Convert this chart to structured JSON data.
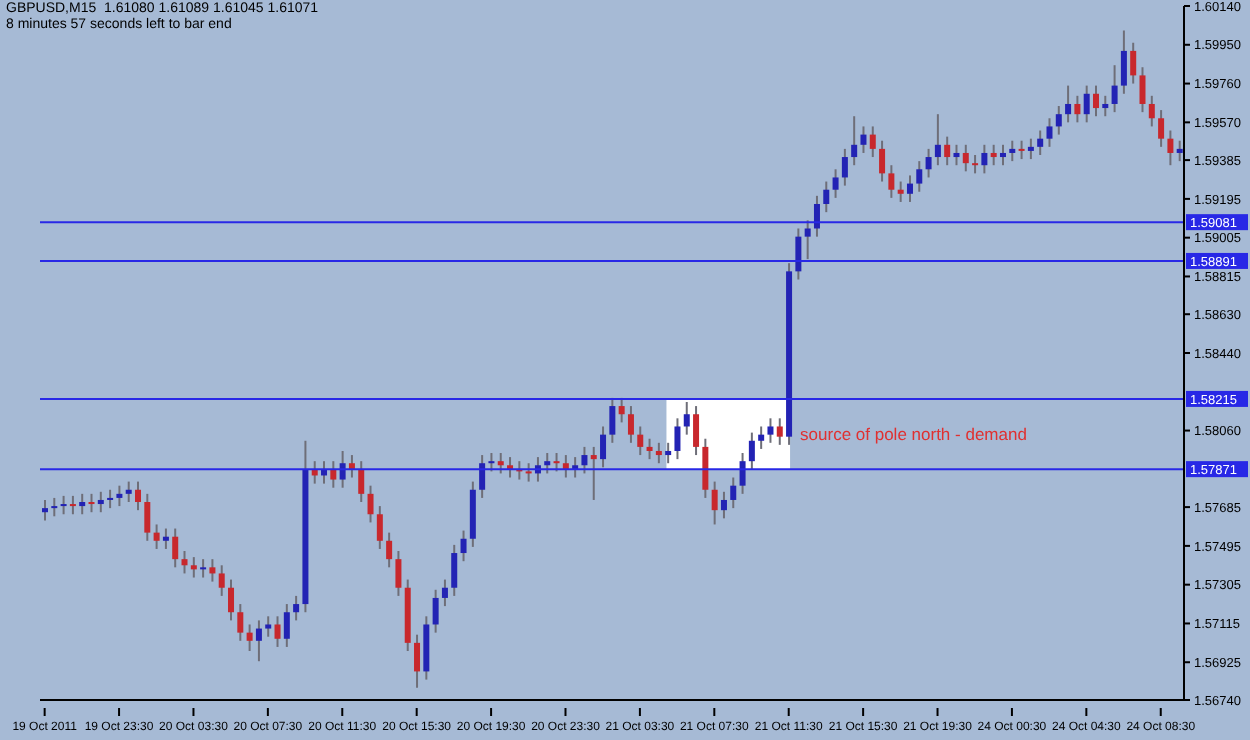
{
  "chart_data": {
    "type": "candlestick",
    "title": "GBPUSD,M15  1.61080 1.61089 1.61045 1.61071",
    "subtitle": "8 minutes 57 seconds left to bar end",
    "annotations": [
      "source of pole north - demand"
    ],
    "categories": [
      "19 Oct 2011",
      null,
      null,
      null,
      null,
      null,
      null,
      null,
      "19 Oct 23:30",
      null,
      null,
      null,
      null,
      null,
      null,
      null,
      "20 Oct 03:30",
      null,
      null,
      null,
      null,
      null,
      null,
      null,
      "20 Oct 07:30",
      null,
      null,
      null,
      null,
      null,
      null,
      null,
      "20 Oct 11:30",
      null,
      null,
      null,
      null,
      null,
      null,
      null,
      "20 Oct 15:30",
      null,
      null,
      null,
      null,
      null,
      null,
      null,
      "20 Oct 19:30",
      null,
      null,
      null,
      null,
      null,
      null,
      null,
      "20 Oct 23:30",
      null,
      null,
      null,
      null,
      null,
      null,
      null,
      "21 Oct 03:30",
      null,
      null,
      null,
      null,
      null,
      null,
      null,
      "21 Oct 07:30",
      null,
      null,
      null,
      null,
      null,
      null,
      null,
      "21 Oct 11:30",
      null,
      null,
      null,
      null,
      null,
      null,
      null,
      "21 Oct 15:30",
      null,
      null,
      null,
      null,
      null,
      null,
      null,
      "21 Oct 19:30",
      null,
      null,
      null,
      null,
      null,
      null,
      null,
      "24 Oct 00:30",
      null,
      null,
      null,
      null,
      null,
      null,
      null,
      "24 Oct 04:30",
      null,
      null,
      null,
      null,
      null,
      null,
      null,
      "24 Oct 08:30",
      null,
      null
    ],
    "ohlc": [
      [
        1.5766,
        1.5772,
        1.5762,
        1.5768
      ],
      [
        1.5768,
        1.5773,
        1.5764,
        1.5769
      ],
      [
        1.5769,
        1.5774,
        1.5765,
        1.577
      ],
      [
        1.577,
        1.5774,
        1.5765,
        1.5769
      ],
      [
        1.5769,
        1.5775,
        1.5765,
        1.5771
      ],
      [
        1.5771,
        1.5775,
        1.5766,
        1.577
      ],
      [
        1.577,
        1.5776,
        1.5766,
        1.5772
      ],
      [
        1.5772,
        1.5777,
        1.5768,
        1.5773
      ],
      [
        1.5773,
        1.5779,
        1.5769,
        1.5775
      ],
      [
        1.5775,
        1.5781,
        1.5771,
        1.5777
      ],
      [
        1.5777,
        1.5781,
        1.5767,
        1.5771
      ],
      [
        1.5771,
        1.5775,
        1.5752,
        1.5756
      ],
      [
        1.5756,
        1.576,
        1.5748,
        1.5752
      ],
      [
        1.5752,
        1.5758,
        1.5748,
        1.5754
      ],
      [
        1.5754,
        1.5758,
        1.5739,
        1.5743
      ],
      [
        1.5743,
        1.5747,
        1.5736,
        1.574
      ],
      [
        1.574,
        1.5744,
        1.5734,
        1.5738
      ],
      [
        1.5738,
        1.5743,
        1.5734,
        1.5739
      ],
      [
        1.5739,
        1.5743,
        1.5732,
        1.5736
      ],
      [
        1.5736,
        1.574,
        1.5725,
        1.5729
      ],
      [
        1.5729,
        1.5733,
        1.5713,
        1.5717
      ],
      [
        1.5717,
        1.5721,
        1.5703,
        1.5707
      ],
      [
        1.5707,
        1.5711,
        1.5698,
        1.5703
      ],
      [
        1.5703,
        1.5713,
        1.5693,
        1.5709
      ],
      [
        1.5709,
        1.5715,
        1.5705,
        1.5711
      ],
      [
        1.5711,
        1.5715,
        1.57,
        1.5704
      ],
      [
        1.5704,
        1.5721,
        1.57,
        1.5717
      ],
      [
        1.5717,
        1.5725,
        1.5713,
        1.5721
      ],
      [
        1.5721,
        1.5801,
        1.5717,
        1.5787
      ],
      [
        1.5787,
        1.5791,
        1.578,
        1.5784
      ],
      [
        1.5784,
        1.5791,
        1.578,
        1.5787
      ],
      [
        1.5787,
        1.5791,
        1.5778,
        1.5782
      ],
      [
        1.5782,
        1.5796,
        1.5778,
        1.579
      ],
      [
        1.579,
        1.5794,
        1.5783,
        1.5787
      ],
      [
        1.5787,
        1.5791,
        1.5771,
        1.5775
      ],
      [
        1.5775,
        1.5779,
        1.5761,
        1.5765
      ],
      [
        1.5765,
        1.5769,
        1.5748,
        1.5752
      ],
      [
        1.5752,
        1.5756,
        1.5739,
        1.5743
      ],
      [
        1.5743,
        1.5747,
        1.5725,
        1.5729
      ],
      [
        1.5729,
        1.5733,
        1.5698,
        1.5702
      ],
      [
        1.5702,
        1.5706,
        1.568,
        1.5688
      ],
      [
        1.5688,
        1.5715,
        1.5684,
        1.5711
      ],
      [
        1.5711,
        1.5728,
        1.5707,
        1.5724
      ],
      [
        1.5724,
        1.5733,
        1.572,
        1.5729
      ],
      [
        1.5729,
        1.575,
        1.5725,
        1.5746
      ],
      [
        1.5746,
        1.5757,
        1.5742,
        1.5753
      ],
      [
        1.5753,
        1.5781,
        1.5749,
        1.5777
      ],
      [
        1.5777,
        1.5794,
        1.5773,
        1.579
      ],
      [
        1.579,
        1.5795,
        1.5786,
        1.5791
      ],
      [
        1.5791,
        1.5795,
        1.5785,
        1.5789
      ],
      [
        1.5789,
        1.5793,
        1.5783,
        1.5787
      ],
      [
        1.5787,
        1.5791,
        1.5782,
        1.5786
      ],
      [
        1.5786,
        1.579,
        1.5781,
        1.5785
      ],
      [
        1.5785,
        1.5793,
        1.5781,
        1.5789
      ],
      [
        1.5789,
        1.5795,
        1.5785,
        1.5791
      ],
      [
        1.5791,
        1.5795,
        1.5786,
        1.579
      ],
      [
        1.579,
        1.5794,
        1.5783,
        1.5787
      ],
      [
        1.5787,
        1.5793,
        1.5783,
        1.5789
      ],
      [
        1.5789,
        1.5798,
        1.5785,
        1.5794
      ],
      [
        1.5794,
        1.5798,
        1.5772,
        1.5792
      ],
      [
        1.5792,
        1.5808,
        1.5788,
        1.5804
      ],
      [
        1.5804,
        1.5822,
        1.58,
        1.5818
      ],
      [
        1.5818,
        1.5822,
        1.581,
        1.5814
      ],
      [
        1.5814,
        1.5818,
        1.58,
        1.5804
      ],
      [
        1.5804,
        1.5808,
        1.5794,
        1.5798
      ],
      [
        1.5798,
        1.5802,
        1.5792,
        1.5796
      ],
      [
        1.5796,
        1.58,
        1.579,
        1.5794
      ],
      [
        1.5794,
        1.58,
        1.579,
        1.5796
      ],
      [
        1.5796,
        1.5812,
        1.5792,
        1.5808
      ],
      [
        1.5808,
        1.582,
        1.5804,
        1.5814
      ],
      [
        1.5814,
        1.5818,
        1.5794,
        1.5798
      ],
      [
        1.5798,
        1.5802,
        1.5773,
        1.5777
      ],
      [
        1.5777,
        1.5781,
        1.576,
        1.5767
      ],
      [
        1.5767,
        1.5776,
        1.5763,
        1.5772
      ],
      [
        1.5772,
        1.5783,
        1.5768,
        1.5779
      ],
      [
        1.5779,
        1.5795,
        1.5775,
        1.5791
      ],
      [
        1.5791,
        1.5805,
        1.5787,
        1.5801
      ],
      [
        1.5801,
        1.5808,
        1.5797,
        1.5804
      ],
      [
        1.5804,
        1.5812,
        1.58,
        1.5808
      ],
      [
        1.5808,
        1.5812,
        1.5799,
        1.5803
      ],
      [
        1.5803,
        1.5888,
        1.5799,
        1.5884
      ],
      [
        1.5884,
        1.5905,
        1.588,
        1.5901
      ],
      [
        1.5901,
        1.5909,
        1.589,
        1.5905
      ],
      [
        1.5905,
        1.5921,
        1.5901,
        1.5917
      ],
      [
        1.5917,
        1.5928,
        1.5913,
        1.5924
      ],
      [
        1.5924,
        1.5934,
        1.592,
        1.593
      ],
      [
        1.593,
        1.5944,
        1.5926,
        1.594
      ],
      [
        1.594,
        1.596,
        1.5936,
        1.5946
      ],
      [
        1.5946,
        1.5955,
        1.5942,
        1.5951
      ],
      [
        1.5951,
        1.5955,
        1.594,
        1.5944
      ],
      [
        1.5944,
        1.5948,
        1.5928,
        1.5932
      ],
      [
        1.5932,
        1.5936,
        1.592,
        1.5924
      ],
      [
        1.5924,
        1.5928,
        1.5918,
        1.5922
      ],
      [
        1.5922,
        1.5931,
        1.5918,
        1.5927
      ],
      [
        1.5927,
        1.5938,
        1.5923,
        1.5934
      ],
      [
        1.5934,
        1.5944,
        1.593,
        1.594
      ],
      [
        1.594,
        1.5961,
        1.5936,
        1.5946
      ],
      [
        1.5946,
        1.595,
        1.5936,
        1.594
      ],
      [
        1.594,
        1.5946,
        1.5936,
        1.5942
      ],
      [
        1.5942,
        1.5946,
        1.5933,
        1.5937
      ],
      [
        1.5937,
        1.5941,
        1.5932,
        1.5936
      ],
      [
        1.5936,
        1.5946,
        1.5932,
        1.5942
      ],
      [
        1.5942,
        1.5946,
        1.5936,
        1.594
      ],
      [
        1.594,
        1.5946,
        1.5936,
        1.5942
      ],
      [
        1.5942,
        1.5948,
        1.5938,
        1.5944
      ],
      [
        1.5944,
        1.5948,
        1.5939,
        1.5943
      ],
      [
        1.5943,
        1.5949,
        1.5939,
        1.5945
      ],
      [
        1.5945,
        1.5953,
        1.5941,
        1.5949
      ],
      [
        1.5949,
        1.5959,
        1.5945,
        1.5955
      ],
      [
        1.5955,
        1.5965,
        1.5951,
        1.5961
      ],
      [
        1.5961,
        1.5975,
        1.5957,
        1.5966
      ],
      [
        1.5966,
        1.597,
        1.5957,
        1.5961
      ],
      [
        1.5961,
        1.5975,
        1.5957,
        1.5971
      ],
      [
        1.5971,
        1.5975,
        1.596,
        1.5964
      ],
      [
        1.5964,
        1.597,
        1.596,
        1.5966
      ],
      [
        1.5966,
        1.5985,
        1.5962,
        1.5975
      ],
      [
        1.5975,
        1.6002,
        1.5971,
        1.5992
      ],
      [
        1.5992,
        1.5996,
        1.5976,
        1.598
      ],
      [
        1.598,
        1.5984,
        1.5962,
        1.5966
      ],
      [
        1.5966,
        1.597,
        1.5955,
        1.5959
      ],
      [
        1.5959,
        1.5963,
        1.5945,
        1.5949
      ],
      [
        1.5949,
        1.5953,
        1.5936,
        1.5942
      ],
      [
        1.5942,
        1.5948,
        1.5938,
        1.5944
      ]
    ],
    "colors": [
      "#2323b4",
      "#2323b4",
      "#2323b4",
      "#c8282d",
      "#2323b4",
      "#c8282d",
      "#2323b4",
      "#2323b4",
      "#2323b4",
      "#2323b4",
      "#c8282d",
      "#c8282d",
      "#c8282d",
      "#2323b4",
      "#c8282d",
      "#c8282d",
      "#c8282d",
      "#2323b4",
      "#c8282d",
      "#c8282d",
      "#c8282d",
      "#c8282d",
      "#c8282d",
      "#2323b4",
      "#2323b4",
      "#c8282d",
      "#2323b4",
      "#2323b4",
      "#2323b4",
      "#c8282d",
      "#2323b4",
      "#c8282d",
      "#2323b4",
      "#c8282d",
      "#c8282d",
      "#c8282d",
      "#c8282d",
      "#c8282d",
      "#c8282d",
      "#c8282d",
      "#c8282d",
      "#2323b4",
      "#2323b4",
      "#2323b4",
      "#2323b4",
      "#2323b4",
      "#2323b4",
      "#2323b4",
      "#2323b4",
      "#c8282d",
      "#c8282d",
      "#c8282d",
      "#c8282d",
      "#2323b4",
      "#2323b4",
      "#c8282d",
      "#c8282d",
      "#2323b4",
      "#2323b4",
      "#c8282d",
      "#2323b4",
      "#2323b4",
      "#c8282d",
      "#c8282d",
      "#c8282d",
      "#c8282d",
      "#c8282d",
      "#2323b4",
      "#2323b4",
      "#2323b4",
      "#c8282d",
      "#c8282d",
      "#c8282d",
      "#2323b4",
      "#2323b4",
      "#2323b4",
      "#2323b4",
      "#2323b4",
      "#2323b4",
      "#c8282d",
      "#2323b4",
      "#2323b4",
      "#2323b4",
      "#2323b4",
      "#2323b4",
      "#2323b4",
      "#2323b4",
      "#2323b4",
      "#2323b4",
      "#c8282d",
      "#c8282d",
      "#c8282d",
      "#c8282d",
      "#2323b4",
      "#2323b4",
      "#2323b4",
      "#2323b4",
      "#c8282d",
      "#2323b4",
      "#c8282d",
      "#c8282d",
      "#2323b4",
      "#c8282d",
      "#2323b4",
      "#2323b4",
      "#c8282d",
      "#2323b4",
      "#2323b4",
      "#2323b4",
      "#2323b4",
      "#2323b4",
      "#c8282d",
      "#2323b4",
      "#c8282d",
      "#2323b4",
      "#2323b4",
      "#2323b4",
      "#c8282d",
      "#c8282d",
      "#c8282d",
      "#c8282d",
      "#c8282d",
      "#2323b4"
    ],
    "ylim": [
      1.5674,
      1.6014
    ],
    "yticks": [
      {
        "value": 1.6014,
        "label": "1.60140"
      },
      {
        "value": 1.5995,
        "label": "1.59950"
      },
      {
        "value": 1.5976,
        "label": "1.59760"
      },
      {
        "value": 1.5957,
        "label": "1.59570"
      },
      {
        "value": 1.59385,
        "label": "1.59385"
      },
      {
        "value": 1.59195,
        "label": "1.59195"
      },
      {
        "value": 1.59005,
        "label": "1.59005"
      },
      {
        "value": 1.58815,
        "label": "1.58815"
      },
      {
        "value": 1.5863,
        "label": "1.58630"
      },
      {
        "value": 1.5844,
        "label": "1.58440"
      },
      {
        "value": 1.5806,
        "label": "1.58060"
      },
      {
        "value": 1.57685,
        "label": "1.57685"
      },
      {
        "value": 1.57495,
        "label": "1.57495"
      },
      {
        "value": 1.57305,
        "label": "1.57305"
      },
      {
        "value": 1.57115,
        "label": "1.57115"
      },
      {
        "value": 1.56925,
        "label": "1.56925"
      },
      {
        "value": 1.5674,
        "label": "1.56740"
      }
    ],
    "ref_lines": [
      {
        "axis": "y",
        "value": 1.59081,
        "label": "1.59081",
        "color": "#2828e6"
      },
      {
        "axis": "y",
        "value": 1.58891,
        "label": "1.58891",
        "color": "#2828e6"
      },
      {
        "axis": "y",
        "value": 1.58215,
        "label": "1.58215",
        "color": "#2828e6"
      },
      {
        "axis": "y",
        "value": 1.57871,
        "label": "1.57871",
        "color": "#2828e6"
      }
    ]
  }
}
